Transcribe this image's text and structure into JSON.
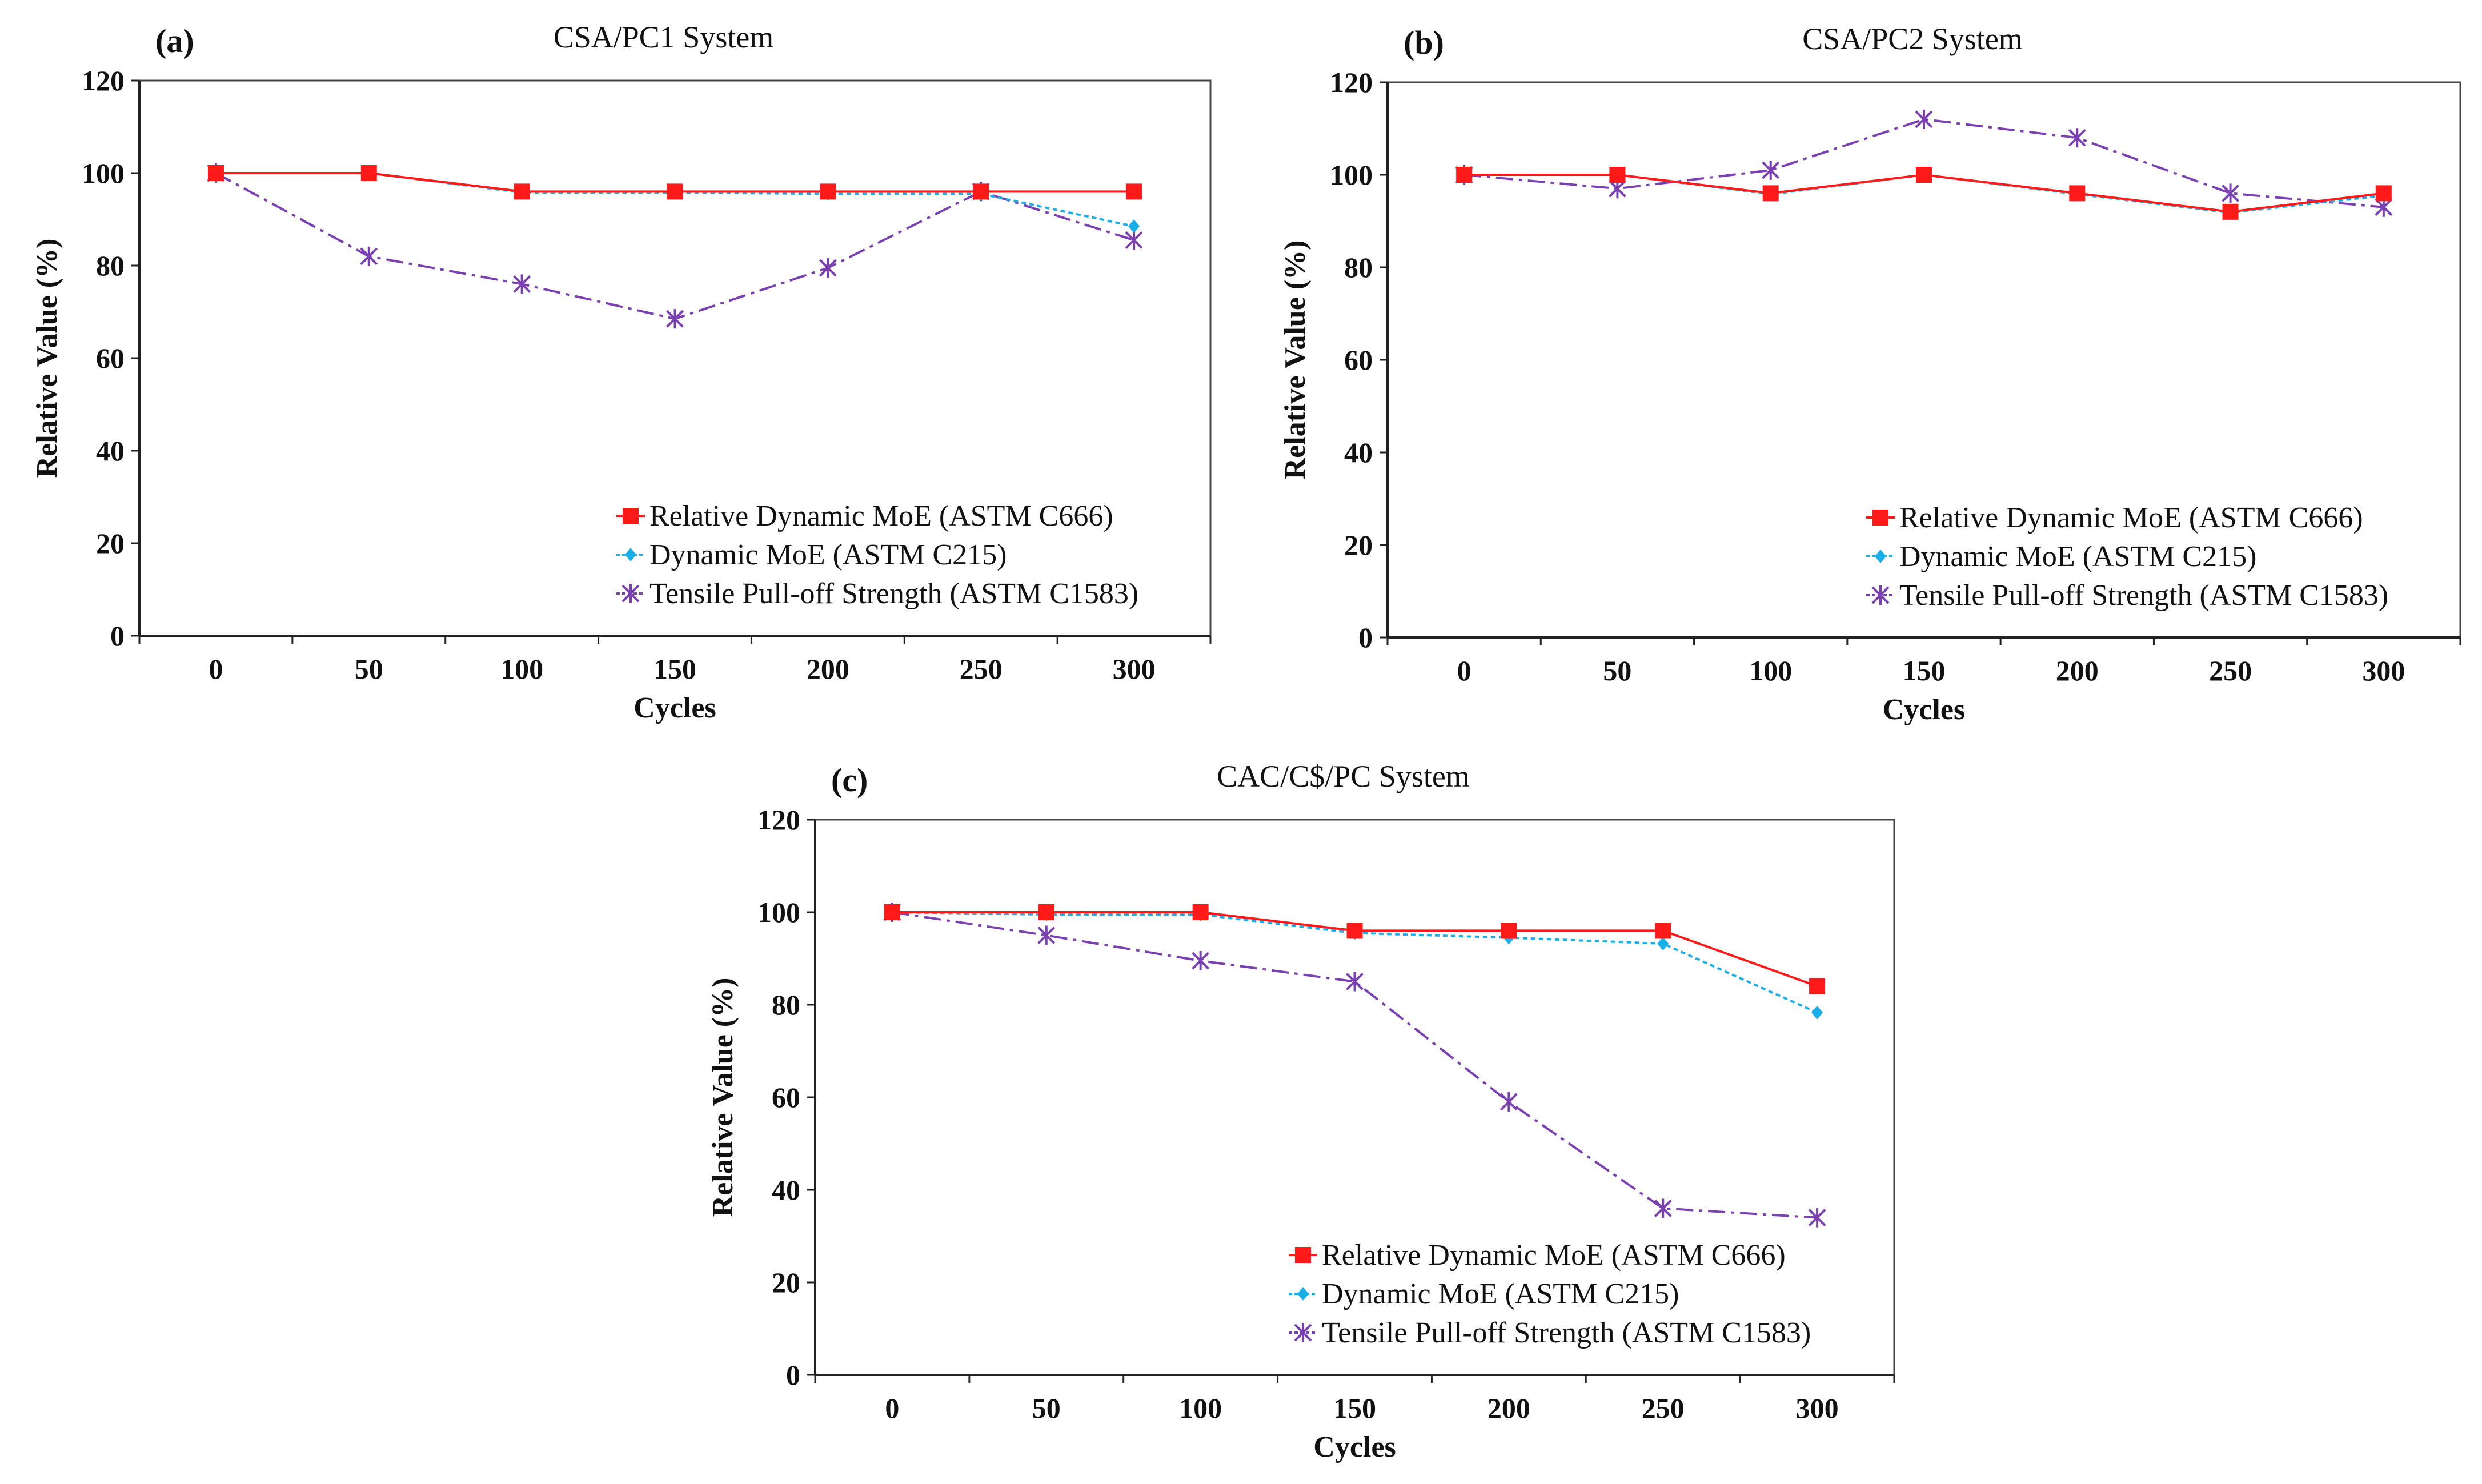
{
  "colors": {
    "rdm": "#ff1a1a",
    "dm": "#1aaee8",
    "tps": "#7a3fb0"
  },
  "chart_data": [
    {
      "type": "line",
      "panel": "(a)",
      "title": "CSA/PC1 System",
      "xlabel": "Cycles",
      "ylabel": "Relative Value (%)",
      "ylim": [
        0,
        120
      ],
      "yticks": [
        "0",
        "20",
        "40",
        "60",
        "80",
        "100",
        "120"
      ],
      "categories": [
        "0",
        "50",
        "100",
        "150",
        "200",
        "250",
        "300"
      ],
      "legend_position": "bottom-right",
      "series": [
        {
          "name": "Relative Dynamic MoE (ASTM C666)",
          "key": "rdm",
          "values": [
            100,
            100,
            96,
            96,
            96,
            96,
            96
          ]
        },
        {
          "name": "Dynamic MoE (ASTM C215)",
          "key": "dm",
          "values": [
            100,
            100,
            95.8,
            95.8,
            95.5,
            95.5,
            88.5
          ]
        },
        {
          "name": "Tensile Pull-off Strength (ASTM C1583)",
          "key": "tps",
          "values": [
            100,
            82,
            76,
            68.5,
            79.5,
            96,
            85.5
          ]
        }
      ]
    },
    {
      "type": "line",
      "panel": "(b)",
      "title": "CSA/PC2 System",
      "xlabel": "Cycles",
      "ylabel": "Relative Value (%)",
      "ylim": [
        0,
        120
      ],
      "yticks": [
        "0",
        "20",
        "40",
        "60",
        "80",
        "100",
        "120"
      ],
      "categories": [
        "0",
        "50",
        "100",
        "150",
        "200",
        "250",
        "300"
      ],
      "legend_position": "bottom-right",
      "series": [
        {
          "name": "Relative Dynamic MoE (ASTM C666)",
          "key": "rdm",
          "values": [
            100,
            100,
            96,
            100,
            96,
            92,
            96
          ]
        },
        {
          "name": "Dynamic MoE (ASTM C215)",
          "key": "dm",
          "values": [
            100,
            100,
            95.8,
            100,
            95.8,
            91.8,
            95.5
          ]
        },
        {
          "name": "Tensile Pull-off Strength (ASTM C1583)",
          "key": "tps",
          "values": [
            100,
            97,
            101,
            112,
            108,
            96,
            93
          ]
        }
      ]
    },
    {
      "type": "line",
      "panel": "(c)",
      "title": "CAC/C$/PC System",
      "xlabel": "Cycles",
      "ylabel": "Relative Value (%)",
      "ylim": [
        0,
        120
      ],
      "yticks": [
        "0",
        "20",
        "40",
        "60",
        "80",
        "100",
        "120"
      ],
      "categories": [
        "0",
        "50",
        "100",
        "150",
        "200",
        "250",
        "300"
      ],
      "legend_position": "bottom-right",
      "series": [
        {
          "name": "Relative Dynamic MoE (ASTM C666)",
          "key": "rdm",
          "values": [
            100,
            100,
            100,
            96,
            96,
            96,
            84
          ]
        },
        {
          "name": "Dynamic MoE (ASTM C215)",
          "key": "dm",
          "values": [
            100,
            99.5,
            99.5,
            95.5,
            94.5,
            93.2,
            78.3
          ]
        },
        {
          "name": "Tensile Pull-off Strength (ASTM C1583)",
          "key": "tps",
          "values": [
            100,
            95,
            89.5,
            85,
            59,
            36,
            34
          ]
        }
      ]
    }
  ]
}
